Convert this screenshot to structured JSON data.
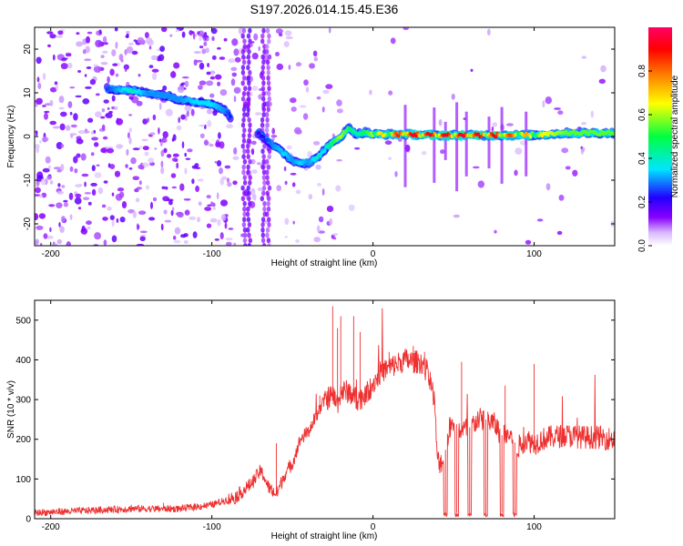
{
  "title": "S197.2026.014.15.45.E36",
  "chart_data": [
    {
      "type": "heatmap",
      "xlabel": "Height of straight line (km)",
      "ylabel": "Frequency (Hz)",
      "xlim": [
        -210,
        150
      ],
      "ylim": [
        -25,
        25
      ],
      "x_ticks": [
        -200,
        -100,
        0,
        100
      ],
      "y_ticks": [
        20,
        10,
        0,
        -10,
        -20
      ],
      "colorbar": {
        "label": "Normalized spectral amplitude",
        "range": [
          0,
          1
        ],
        "ticks": [
          0.0,
          0.2,
          0.4,
          0.6,
          0.8
        ],
        "colormap": [
          "#ffffff",
          "#d9b8ff",
          "#8800ff",
          "#2200ff",
          "#00e5ff",
          "#00ff40",
          "#ffff00",
          "#ff8000",
          "#ff0000",
          "#ff0066"
        ]
      },
      "dominant_frequency_track": {
        "x": [
          -165,
          -150,
          -140,
          -130,
          -120,
          -110,
          -100,
          -92,
          -85,
          -70,
          -62,
          -55,
          -50,
          -45,
          -40,
          -35,
          -30,
          -25,
          -20,
          -15,
          -10,
          -5,
          0,
          20,
          40,
          60,
          80,
          100,
          120,
          150
        ],
        "y": [
          11,
          10.5,
          10,
          9.5,
          8.5,
          8,
          7.5,
          6,
          3,
          0.5,
          -2,
          -4,
          -5.5,
          -6,
          -6,
          -5,
          -3,
          -1.5,
          0,
          2,
          0.5,
          1,
          0.5,
          0.5,
          0.3,
          0.3,
          0.3,
          0.3,
          0.8,
          0.8
        ],
        "amplitude": [
          0.25,
          0.4,
          0.3,
          0.3,
          0.3,
          0.35,
          0.35,
          0.3,
          0.15,
          0.2,
          0.3,
          0.35,
          0.3,
          0.35,
          0.3,
          0.4,
          0.35,
          0.5,
          0.6,
          0.5,
          0.4,
          0.5,
          0.6,
          0.95,
          0.95,
          0.95,
          0.9,
          0.7,
          0.55,
          0.55
        ]
      }
    },
    {
      "type": "line",
      "xlabel": "Height of straight line (km)",
      "ylabel": "SNR (10 * v/v)",
      "xlim": [
        -210,
        150
      ],
      "ylim": [
        0,
        550
      ],
      "x_ticks": [
        -200,
        -100,
        0,
        100
      ],
      "y_ticks": [
        0,
        100,
        200,
        300,
        400,
        500
      ],
      "series": [
        {
          "color": "#ee3030",
          "x": [
            -210,
            -180,
            -150,
            -120,
            -100,
            -85,
            -75,
            -70,
            -68,
            -65,
            -60,
            -55,
            -50,
            -45,
            -40,
            -35,
            -30,
            -25,
            -22,
            -20,
            -15,
            -10,
            -5,
            0,
            5,
            10,
            15,
            20,
            25,
            30,
            35,
            38,
            40,
            41,
            44,
            47,
            50,
            55,
            60,
            65,
            70,
            75,
            80,
            85,
            90,
            95,
            100,
            105,
            110,
            120,
            130,
            140,
            150
          ],
          "y": [
            15,
            20,
            25,
            25,
            35,
            55,
            90,
            120,
            110,
            80,
            60,
            110,
            140,
            200,
            220,
            260,
            300,
            310,
            290,
            320,
            320,
            300,
            310,
            340,
            370,
            380,
            390,
            400,
            395,
            395,
            360,
            300,
            150,
            140,
            150,
            220,
            250,
            220,
            230,
            250,
            250,
            240,
            210,
            210,
            180,
            200,
            190,
            200,
            205,
            210,
            205,
            205,
            200
          ],
          "spikes": [
            [
              -60,
              190
            ],
            [
              -33,
              310
            ],
            [
              -25,
              535
            ],
            [
              -22,
              480
            ],
            [
              -20,
              510
            ],
            [
              -12,
              510
            ],
            [
              -8,
              470
            ],
            [
              10,
              420
            ],
            [
              25,
              435
            ],
            [
              32,
              420
            ],
            [
              55,
              395
            ],
            [
              82,
              335
            ],
            [
              100,
              390
            ],
            [
              -110,
              30
            ],
            [
              -150,
              35
            ],
            [
              -130,
              40
            ],
            [
              45,
              10
            ],
            [
              52,
              15
            ],
            [
              60,
              10
            ],
            [
              70,
              10
            ],
            [
              80,
              15
            ],
            [
              88,
              10
            ]
          ]
        }
      ]
    }
  ]
}
